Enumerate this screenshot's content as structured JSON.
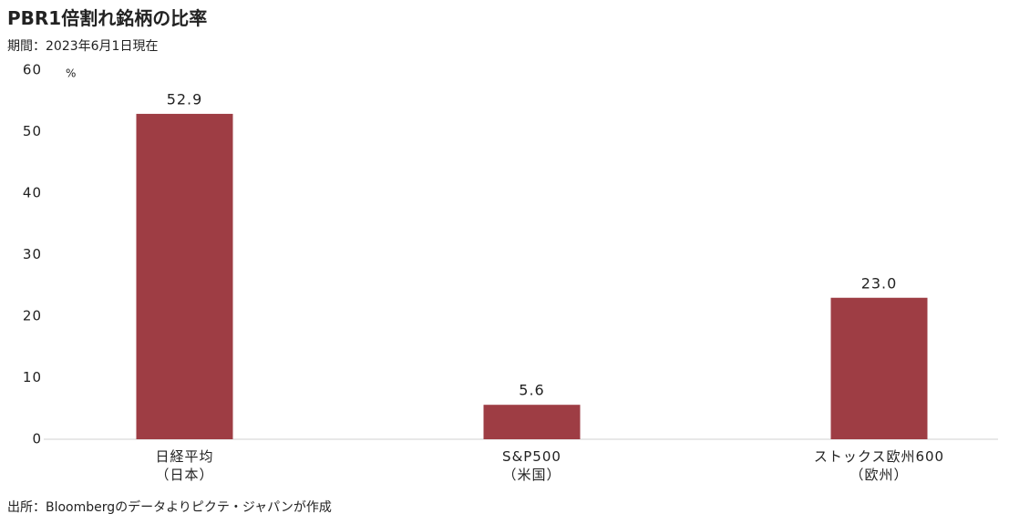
{
  "chart_data": {
    "type": "bar",
    "title": "PBR1倍割れ銘柄の比率",
    "subtitle": "期間：2023年6月1日現在",
    "source": "出所：Bloombergのデータよりピクテ・ジャパンが作成",
    "y_unit": "%",
    "categories": [
      "日経平均\n（日本）",
      "S&P500\n（米国）",
      "ストックス欧州600\n（欧州）"
    ],
    "values": [
      52.9,
      5.6,
      23.0
    ],
    "value_labels": [
      "52.9",
      "5.6",
      "23.0"
    ],
    "color": "#9e3d44",
    "ylim": [
      0,
      60
    ],
    "yticks": [
      0,
      10,
      20,
      30,
      40,
      50,
      60
    ],
    "grid": false
  }
}
